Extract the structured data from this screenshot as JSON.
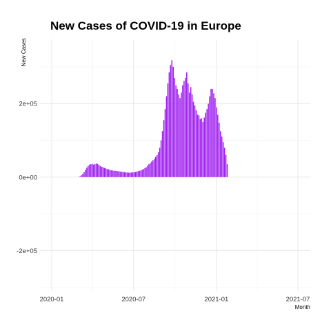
{
  "chart_data": {
    "type": "bar",
    "title": "New Cases of COVID-19 in Europe",
    "xlabel": "Month",
    "ylabel": "New Cases",
    "color": "#a020f0",
    "grid": true,
    "x_ticks": [
      "2020-01",
      "2020-07",
      "2021-01",
      "2021-07"
    ],
    "y_ticks": [
      "-2e+05",
      "0e+00",
      "2e+05"
    ],
    "xlim": [
      "2020-01-01",
      "2021-07-01"
    ],
    "ylim": [
      -310000,
      375000
    ],
    "series": [
      {
        "x_start": "2020-03-01",
        "interval_days": 3,
        "values": [
          500,
          2000,
          5000,
          9000,
          14000,
          20000,
          26000,
          31000,
          34000,
          35000,
          36000,
          34000,
          35000,
          37000,
          36000,
          33000,
          30000,
          28000,
          27000,
          25000,
          24000,
          22000,
          21000,
          20000,
          19000,
          18000,
          17000,
          17000,
          16500,
          16000,
          15500,
          15000,
          14500,
          14000,
          13500,
          13000,
          12500,
          12000,
          12000,
          12500,
          13000,
          13500,
          14000,
          15000,
          16000,
          17000,
          18000,
          20000,
          22000,
          24000,
          27000,
          31000,
          35000,
          38000,
          42000,
          46000,
          50000,
          55000,
          60000,
          68000,
          80000,
          100000,
          125000,
          155000,
          185000,
          220000,
          255000,
          285000,
          305000,
          318000,
          300000,
          270000,
          250000,
          240000,
          225000,
          215000,
          230000,
          250000,
          262000,
          270000,
          285000,
          255000,
          230000,
          245000,
          225000,
          205000,
          195000,
          182000,
          170000,
          168000,
          158000,
          160000,
          150000,
          162000,
          175000,
          185000,
          200000,
          220000,
          240000,
          240000,
          228000,
          215000,
          190000,
          170000,
          148000,
          125000,
          110000,
          95000,
          80000,
          60000,
          35000
        ]
      }
    ]
  }
}
